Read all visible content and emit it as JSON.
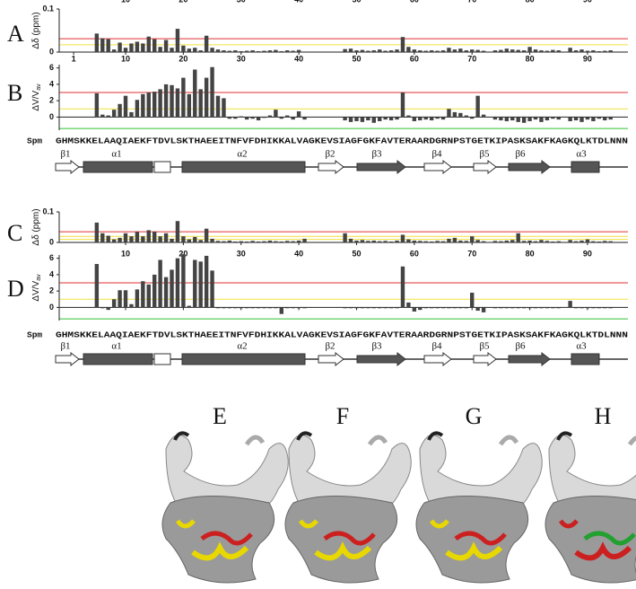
{
  "panels": [
    "A",
    "B",
    "C",
    "D"
  ],
  "structure_panels": [
    "E",
    "F",
    "G",
    "H"
  ],
  "sequence_label": "Spm",
  "sequence": "GHMSKKELAAQIAEKFTDVLSKTHAEEITNFVFDHIKKALVAGKEVSIAGFGKFAVTERAARDGRNPSTGETKIPASKSAKFKAGKQLKTDLNNN",
  "secondary_structure": [
    "β1",
    "α1",
    "α2",
    "β2",
    "β3",
    "β4",
    "β5",
    "β6",
    "α3"
  ],
  "chart_data": [
    {
      "type": "bar",
      "y_label": "Δδ (ppm)",
      "color": "#444444",
      "x": [
        1,
        2,
        3,
        4,
        5,
        6,
        7,
        8,
        9,
        10,
        11,
        12,
        13,
        14,
        15,
        16,
        17,
        18,
        19,
        20,
        21,
        22,
        23,
        24,
        25,
        26,
        27,
        28,
        29,
        30,
        31,
        32,
        33,
        34,
        35,
        36,
        37,
        38,
        39,
        40,
        41,
        42,
        43,
        44,
        45,
        46,
        47,
        48,
        49,
        50,
        51,
        52,
        53,
        54,
        55,
        56,
        57,
        58,
        59,
        60,
        61,
        62,
        63,
        64,
        65,
        66,
        67,
        68,
        69,
        70,
        71,
        72,
        73,
        74,
        75,
        76,
        77,
        78,
        79,
        80,
        81,
        82,
        83,
        84,
        85,
        86,
        87,
        88,
        89,
        90,
        91,
        92,
        93,
        94
      ],
      "values": [
        null,
        null,
        null,
        null,
        0.043,
        0.032,
        0.03,
        0.006,
        0.022,
        0.01,
        0.02,
        0.024,
        0.02,
        0.036,
        0.03,
        0.012,
        0.028,
        0.01,
        0.054,
        0.015,
        0.008,
        0.01,
        0.004,
        0.038,
        0.01,
        0.006,
        0.004,
        0.003,
        0.004,
        0.002,
        0.003,
        0.004,
        0.002,
        0.003,
        0.004,
        0.005,
        0.002,
        0.004,
        0.003,
        0.005,
        null,
        null,
        null,
        null,
        null,
        null,
        null,
        0.007,
        0.008,
        0.004,
        0.005,
        0.003,
        0.004,
        0.006,
        0.003,
        0.004,
        0.006,
        0.035,
        0.012,
        0.006,
        0.004,
        0.003,
        0.004,
        0.003,
        0.004,
        0.01,
        0.006,
        0.008,
        0.004,
        0.006,
        0.005,
        0.003,
        null,
        0.004,
        0.005,
        0.008,
        0.006,
        0.005,
        0.004,
        0.012,
        0.006,
        0.004,
        0.003,
        0.005,
        0.004,
        null,
        0.01,
        0.004,
        0.006,
        0.003,
        0.004,
        0.002,
        0.003,
        0.004
      ],
      "xlim": [
        -1.5,
        97
      ],
      "xticks": [
        1,
        10,
        20,
        30,
        40,
        50,
        60,
        70,
        80,
        90
      ],
      "ylim": [
        0,
        0.1
      ],
      "yticks": [
        0,
        0.1
      ],
      "reference_lines": [
        {
          "value": 0.031,
          "color": "#e03030"
        },
        {
          "value": 0.017,
          "color": "#f0e040"
        }
      ]
    },
    {
      "type": "bar",
      "y_label": "ΔV/V",
      "y_label_sub": "av",
      "color": "#444444",
      "x": [
        1,
        2,
        3,
        4,
        5,
        6,
        7,
        8,
        9,
        10,
        11,
        12,
        13,
        14,
        15,
        16,
        17,
        18,
        19,
        20,
        21,
        22,
        23,
        24,
        25,
        26,
        27,
        28,
        29,
        30,
        31,
        32,
        33,
        34,
        35,
        36,
        37,
        38,
        39,
        40,
        41,
        42,
        43,
        44,
        45,
        46,
        47,
        48,
        49,
        50,
        51,
        52,
        53,
        54,
        55,
        56,
        57,
        58,
        59,
        60,
        61,
        62,
        63,
        64,
        65,
        66,
        67,
        68,
        69,
        70,
        71,
        72,
        73,
        74,
        75,
        76,
        77,
        78,
        79,
        80,
        81,
        82,
        83,
        84,
        85,
        86,
        87,
        88,
        89,
        90,
        91,
        92,
        93,
        94
      ],
      "values": [
        null,
        null,
        null,
        null,
        2.9,
        0.3,
        0.2,
        0.9,
        1.6,
        2.6,
        0.6,
        2.1,
        2.8,
        3.0,
        3.1,
        3.4,
        4.0,
        3.9,
        3.5,
        4.8,
        2.8,
        5.8,
        3.4,
        4.8,
        6.1,
        2.6,
        2.3,
        -0.2,
        -0.2,
        0.1,
        -0.3,
        -0.2,
        -0.4,
        -0.1,
        0.2,
        0.9,
        -0.2,
        0.2,
        -0.3,
        0.7,
        -0.3,
        null,
        null,
        null,
        null,
        null,
        null,
        -0.4,
        -0.6,
        -0.5,
        -0.6,
        -0.4,
        -0.7,
        -0.5,
        -0.3,
        -0.4,
        -0.3,
        3.0,
        0.2,
        -0.5,
        -0.4,
        -0.3,
        -0.4,
        -0.2,
        -0.3,
        1.0,
        0.6,
        0.5,
        0.2,
        -0.2,
        2.6,
        0.3,
        null,
        -0.3,
        -0.4,
        -0.5,
        -0.4,
        -0.6,
        -0.7,
        -0.5,
        -0.3,
        -0.6,
        -0.4,
        -0.2,
        -0.3,
        null,
        -0.5,
        -0.4,
        -0.6,
        -0.3,
        -0.5,
        -0.2,
        -0.4,
        -0.3
      ],
      "xlim": [
        -1.5,
        97
      ],
      "ylim": [
        -1.6,
        6.4
      ],
      "yticks": [
        0,
        2,
        4,
        6
      ],
      "reference_lines": [
        {
          "value": 3,
          "color": "#e03030"
        },
        {
          "value": 1,
          "color": "#f0e040"
        },
        {
          "value": -1.4,
          "color": "#30c030"
        }
      ]
    },
    {
      "type": "bar",
      "y_label": "Δδ (ppm)",
      "color": "#444444",
      "x": [
        1,
        2,
        3,
        4,
        5,
        6,
        7,
        8,
        9,
        10,
        11,
        12,
        13,
        14,
        15,
        16,
        17,
        18,
        19,
        20,
        21,
        22,
        23,
        24,
        25,
        26,
        27,
        28,
        29,
        30,
        31,
        32,
        33,
        34,
        35,
        36,
        37,
        38,
        39,
        40,
        41,
        42,
        43,
        44,
        45,
        46,
        47,
        48,
        49,
        50,
        51,
        52,
        53,
        54,
        55,
        56,
        57,
        58,
        59,
        60,
        61,
        62,
        63,
        64,
        65,
        66,
        67,
        68,
        69,
        70,
        71,
        72,
        73,
        74,
        75,
        76,
        77,
        78,
        79,
        80,
        81,
        82,
        83,
        84,
        85,
        86,
        87,
        88,
        89,
        90,
        91,
        92,
        93,
        94
      ],
      "values": [
        null,
        null,
        null,
        null,
        0.065,
        0.03,
        0.022,
        0.01,
        0.015,
        0.03,
        0.02,
        0.035,
        0.02,
        0.04,
        0.035,
        0.02,
        0.03,
        0.012,
        0.07,
        0.02,
        0.01,
        0.018,
        0.008,
        0.045,
        0.012,
        0.005,
        0.004,
        0.006,
        0.003,
        0.004,
        0.003,
        0.005,
        0.003,
        0.004,
        0.006,
        0.004,
        0.003,
        0.005,
        0.004,
        0.006,
        0.012,
        null,
        null,
        null,
        null,
        null,
        null,
        0.03,
        0.012,
        0.006,
        0.008,
        0.005,
        0.006,
        0.004,
        0.005,
        0.003,
        0.006,
        0.025,
        0.01,
        0.006,
        0.005,
        0.004,
        0.003,
        0.005,
        0.004,
        0.012,
        0.015,
        0.006,
        0.005,
        0.02,
        0.008,
        0.004,
        null,
        0.005,
        0.004,
        0.006,
        0.008,
        0.03,
        0.005,
        0.006,
        0.004,
        0.008,
        0.005,
        0.003,
        0.004,
        null,
        0.008,
        0.004,
        0.006,
        0.01,
        0.004,
        0.003,
        0.005,
        0.004
      ],
      "xlim": [
        -1.5,
        97
      ],
      "xticks": [
        10,
        20,
        30,
        40,
        50,
        60,
        70,
        80,
        90
      ],
      "ylim": [
        0,
        0.1
      ],
      "yticks": [
        0,
        0.1
      ],
      "reference_lines": [
        {
          "value": 0.035,
          "color": "#e03030"
        },
        {
          "value": 0.02,
          "color": "#f0e040"
        },
        {
          "value": 0.01,
          "color": "#f0e040"
        }
      ]
    },
    {
      "type": "bar",
      "y_label": "ΔV/V",
      "y_label_sub": "av",
      "color": "#444444",
      "x": [
        1,
        2,
        3,
        4,
        5,
        6,
        7,
        8,
        9,
        10,
        11,
        12,
        13,
        14,
        15,
        16,
        17,
        18,
        19,
        20,
        21,
        22,
        23,
        24,
        25,
        26,
        27,
        28,
        29,
        30,
        31,
        32,
        33,
        34,
        35,
        36,
        37,
        38,
        39,
        40,
        41,
        42,
        43,
        44,
        45,
        46,
        47,
        48,
        49,
        50,
        51,
        52,
        53,
        54,
        55,
        56,
        57,
        58,
        59,
        60,
        61,
        62,
        63,
        64,
        65,
        66,
        67,
        68,
        69,
        70,
        71,
        72,
        73,
        74,
        75,
        76,
        77,
        78,
        79,
        80,
        81,
        82,
        83,
        84,
        85,
        86,
        87,
        88,
        89,
        90,
        91,
        92,
        93,
        94
      ],
      "values": [
        null,
        null,
        null,
        null,
        5.3,
        -0.1,
        -0.3,
        1.0,
        2.1,
        2.1,
        0.4,
        2.2,
        3.2,
        2.8,
        4.0,
        5.8,
        3.7,
        4.6,
        6.0,
        6.5,
        0.2,
        5.8,
        5.6,
        6.3,
        4.5,
        -0.1,
        -0.1,
        -0.1,
        -0.1,
        -0.1,
        -0.1,
        -0.1,
        -0.1,
        -0.1,
        -0.1,
        -0.1,
        -0.8,
        -0.1,
        -0.1,
        -0.1,
        -0.1,
        null,
        null,
        null,
        null,
        null,
        null,
        -0.1,
        -0.1,
        -0.1,
        -0.1,
        -0.1,
        -0.1,
        -0.1,
        -0.1,
        -0.1,
        -0.1,
        5.0,
        0.6,
        -0.5,
        -0.3,
        -0.1,
        -0.1,
        -0.1,
        -0.1,
        -0.1,
        -0.1,
        -0.1,
        -0.1,
        1.8,
        -0.4,
        -0.6,
        null,
        -0.1,
        -0.1,
        -0.1,
        -0.1,
        -0.1,
        -0.1,
        -0.1,
        -0.1,
        -0.1,
        -0.1,
        -0.1,
        -0.1,
        null,
        0.8,
        -0.1,
        -0.1,
        -0.1,
        -0.1,
        -0.1,
        -0.1,
        -0.1
      ],
      "xlim": [
        -1.5,
        97
      ],
      "xticks": [
        10,
        20,
        30,
        40,
        50,
        60,
        70,
        80,
        90
      ],
      "ylim": [
        -1.6,
        6.4
      ],
      "yticks": [
        0,
        2,
        4,
        6
      ],
      "reference_lines": [
        {
          "value": 3,
          "color": "#e03030"
        },
        {
          "value": 1,
          "color": "#f0e040"
        },
        {
          "value": -1.4,
          "color": "#30c030"
        }
      ]
    }
  ]
}
